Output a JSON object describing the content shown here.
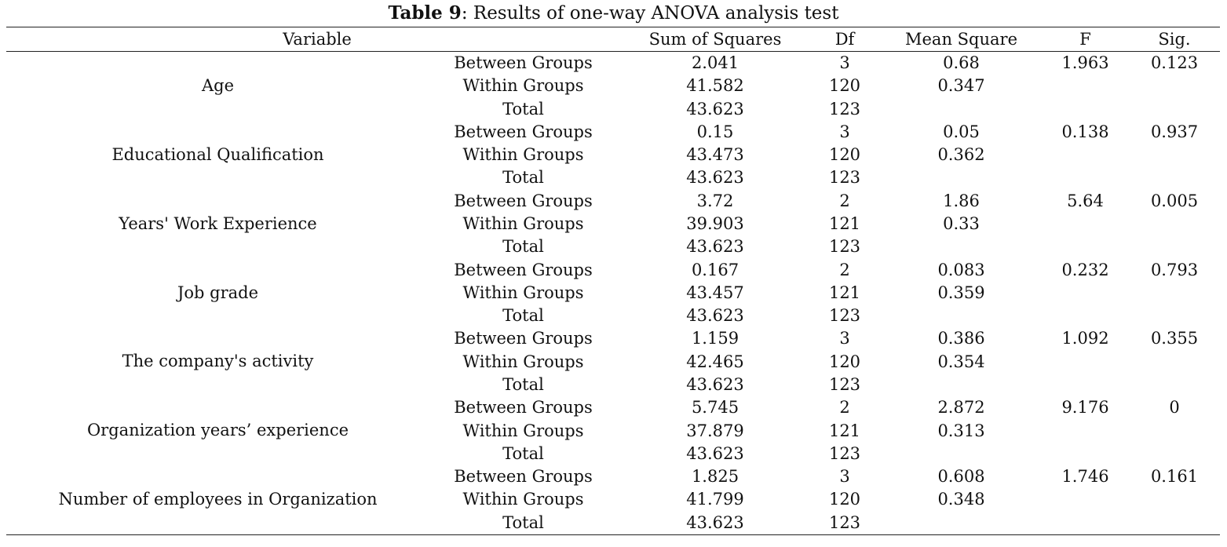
{
  "caption": {
    "label": "Table 9",
    "text": ": Results of one-way ANOVA analysis test"
  },
  "headers": {
    "variable": "Variable",
    "sum_of_squares": "Sum of Squares",
    "df": "Df",
    "mean_square": "Mean Square",
    "f": "F",
    "sig": "Sig."
  },
  "groups": [
    {
      "variable": "Age",
      "rows": [
        {
          "source": "Between Groups",
          "ss": "2.041",
          "df": "3",
          "ms": "0.68",
          "f": "1.963",
          "sig": "0.123"
        },
        {
          "source": "Within Groups",
          "ss": "41.582",
          "df": "120",
          "ms": "0.347",
          "f": "",
          "sig": ""
        },
        {
          "source": "Total",
          "ss": "43.623",
          "df": "123",
          "ms": "",
          "f": "",
          "sig": ""
        }
      ]
    },
    {
      "variable": "Educational Qualification",
      "rows": [
        {
          "source": "Between Groups",
          "ss": "0.15",
          "df": "3",
          "ms": "0.05",
          "f": "0.138",
          "sig": "0.937"
        },
        {
          "source": "Within Groups",
          "ss": "43.473",
          "df": "120",
          "ms": "0.362",
          "f": "",
          "sig": ""
        },
        {
          "source": "Total",
          "ss": "43.623",
          "df": "123",
          "ms": "",
          "f": "",
          "sig": ""
        }
      ]
    },
    {
      "variable": "Years' Work Experience",
      "rows": [
        {
          "source": "Between Groups",
          "ss": "3.72",
          "df": "2",
          "ms": "1.86",
          "f": "5.64",
          "sig": "0.005"
        },
        {
          "source": "Within Groups",
          "ss": "39.903",
          "df": "121",
          "ms": "0.33",
          "f": "",
          "sig": ""
        },
        {
          "source": "Total",
          "ss": "43.623",
          "df": "123",
          "ms": "",
          "f": "",
          "sig": ""
        }
      ]
    },
    {
      "variable": "Job grade",
      "rows": [
        {
          "source": "Between Groups",
          "ss": "0.167",
          "df": "2",
          "ms": "0.083",
          "f": "0.232",
          "sig": "0.793"
        },
        {
          "source": "Within Groups",
          "ss": "43.457",
          "df": "121",
          "ms": "0.359",
          "f": "",
          "sig": ""
        },
        {
          "source": "Total",
          "ss": "43.623",
          "df": "123",
          "ms": "",
          "f": "",
          "sig": ""
        }
      ]
    },
    {
      "variable": "The company's activity",
      "rows": [
        {
          "source": "Between Groups",
          "ss": "1.159",
          "df": "3",
          "ms": "0.386",
          "f": "1.092",
          "sig": "0.355"
        },
        {
          "source": "Within Groups",
          "ss": "42.465",
          "df": "120",
          "ms": "0.354",
          "f": "",
          "sig": ""
        },
        {
          "source": "Total",
          "ss": "43.623",
          "df": "123",
          "ms": "",
          "f": "",
          "sig": ""
        }
      ]
    },
    {
      "variable": "Organization years’ experience",
      "rows": [
        {
          "source": "Between Groups",
          "ss": "5.745",
          "df": "2",
          "ms": "2.872",
          "f": "9.176",
          "sig": "0"
        },
        {
          "source": "Within Groups",
          "ss": "37.879",
          "df": "121",
          "ms": "0.313",
          "f": "",
          "sig": ""
        },
        {
          "source": "Total",
          "ss": "43.623",
          "df": "123",
          "ms": "",
          "f": "",
          "sig": ""
        }
      ]
    },
    {
      "variable": "Number of employees in Organization",
      "rows": [
        {
          "source": "Between Groups",
          "ss": "1.825",
          "df": "3",
          "ms": "0.608",
          "f": "1.746",
          "sig": "0.161"
        },
        {
          "source": "Within Groups",
          "ss": "41.799",
          "df": "120",
          "ms": "0.348",
          "f": "",
          "sig": ""
        },
        {
          "source": "Total",
          "ss": "43.623",
          "df": "123",
          "ms": "",
          "f": "",
          "sig": ""
        }
      ]
    }
  ]
}
